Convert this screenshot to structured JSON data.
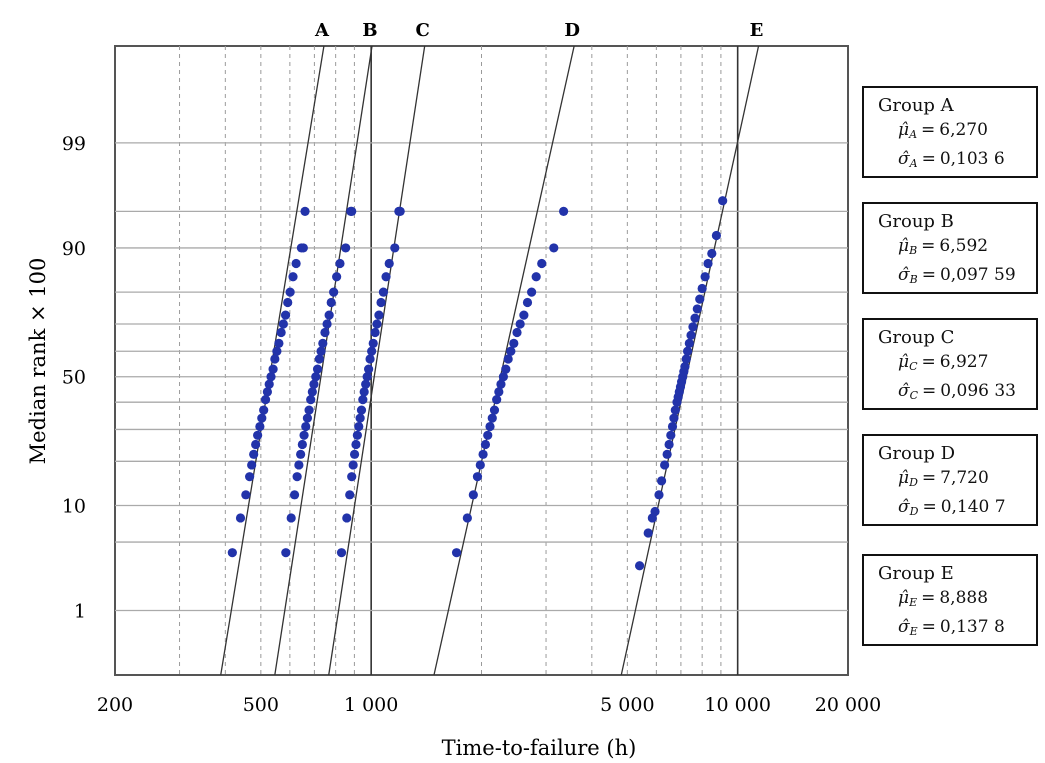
{
  "chart_data": {
    "type": "scatter",
    "title": "",
    "xlabel": "Time-to-failure (h)",
    "ylabel": "Median rank × 100",
    "x_scale": "log",
    "y_scale": "lognormal-probability",
    "xlim": [
      200,
      20000
    ],
    "ylim": [
      0.15,
      99.95
    ],
    "x_tick_labels": [
      {
        "value": 200,
        "label": "200"
      },
      {
        "value": 500,
        "label": "500"
      },
      {
        "value": 1000,
        "label": "1 000"
      },
      {
        "value": 5000,
        "label": "5 000"
      },
      {
        "value": 10000,
        "label": "10 000"
      },
      {
        "value": 20000,
        "label": "20 000"
      }
    ],
    "y_tick_labels": [
      {
        "value": 1,
        "label": "1"
      },
      {
        "value": 10,
        "label": "10"
      },
      {
        "value": 50,
        "label": "50"
      },
      {
        "value": 90,
        "label": "90"
      },
      {
        "value": 99,
        "label": "99"
      }
    ],
    "grid": true,
    "series": [
      {
        "name": "A",
        "mu": 6.27,
        "sigma": 0.1036,
        "points": [
          [
            418,
            4
          ],
          [
            440,
            8
          ],
          [
            455,
            12
          ],
          [
            466,
            16
          ],
          [
            472,
            19
          ],
          [
            478,
            22
          ],
          [
            484,
            25
          ],
          [
            490,
            28
          ],
          [
            497,
            31
          ],
          [
            503,
            34
          ],
          [
            509,
            37
          ],
          [
            515,
            41
          ],
          [
            521,
            44
          ],
          [
            527,
            47
          ],
          [
            533,
            50
          ],
          [
            540,
            53
          ],
          [
            546,
            57
          ],
          [
            553,
            60
          ],
          [
            560,
            63
          ],
          [
            568,
            67
          ],
          [
            576,
            70
          ],
          [
            584,
            73
          ],
          [
            592,
            77
          ],
          [
            601,
            80
          ],
          [
            612,
            84
          ],
          [
            624,
            87
          ],
          [
            645,
            90
          ],
          [
            653,
            90
          ],
          [
            660,
            95
          ]
        ]
      },
      {
        "name": "B",
        "mu": 6.592,
        "sigma": 0.09759,
        "points": [
          [
            585,
            4
          ],
          [
            605,
            8
          ],
          [
            618,
            12
          ],
          [
            628,
            16
          ],
          [
            635,
            19
          ],
          [
            642,
            22
          ],
          [
            649,
            25
          ],
          [
            656,
            28
          ],
          [
            663,
            31
          ],
          [
            670,
            34
          ],
          [
            677,
            37
          ],
          [
            684,
            41
          ],
          [
            691,
            44
          ],
          [
            698,
            47
          ],
          [
            706,
            50
          ],
          [
            714,
            53
          ],
          [
            722,
            57
          ],
          [
            730,
            60
          ],
          [
            738,
            63
          ],
          [
            748,
            67
          ],
          [
            758,
            70
          ],
          [
            768,
            73
          ],
          [
            778,
            77
          ],
          [
            790,
            80
          ],
          [
            805,
            84
          ],
          [
            822,
            87
          ],
          [
            852,
            90
          ],
          [
            880,
            95
          ],
          [
            885,
            95
          ]
        ]
      },
      {
        "name": "C",
        "mu": 6.927,
        "sigma": 0.09633,
        "points": [
          [
            830,
            4
          ],
          [
            858,
            8
          ],
          [
            874,
            12
          ],
          [
            885,
            16
          ],
          [
            893,
            19
          ],
          [
            901,
            22
          ],
          [
            909,
            25
          ],
          [
            917,
            28
          ],
          [
            925,
            31
          ],
          [
            933,
            34
          ],
          [
            941,
            37
          ],
          [
            949,
            41
          ],
          [
            957,
            44
          ],
          [
            966,
            47
          ],
          [
            975,
            50
          ],
          [
            984,
            53
          ],
          [
            993,
            57
          ],
          [
            1003,
            60
          ],
          [
            1013,
            63
          ],
          [
            1025,
            67
          ],
          [
            1037,
            70
          ],
          [
            1050,
            73
          ],
          [
            1064,
            77
          ],
          [
            1080,
            80
          ],
          [
            1098,
            84
          ],
          [
            1120,
            87
          ],
          [
            1160,
            90
          ],
          [
            1190,
            95
          ],
          [
            1200,
            95
          ]
        ]
      },
      {
        "name": "D",
        "mu": 7.72,
        "sigma": 0.1407,
        "points": [
          [
            1710,
            4
          ],
          [
            1830,
            8
          ],
          [
            1900,
            12
          ],
          [
            1950,
            16
          ],
          [
            1985,
            19
          ],
          [
            2020,
            22
          ],
          [
            2050,
            25
          ],
          [
            2080,
            28
          ],
          [
            2110,
            31
          ],
          [
            2140,
            34
          ],
          [
            2170,
            37
          ],
          [
            2200,
            41
          ],
          [
            2230,
            44
          ],
          [
            2260,
            47
          ],
          [
            2295,
            50
          ],
          [
            2330,
            53
          ],
          [
            2365,
            57
          ],
          [
            2405,
            60
          ],
          [
            2450,
            63
          ],
          [
            2500,
            67
          ],
          [
            2550,
            70
          ],
          [
            2610,
            73
          ],
          [
            2670,
            77
          ],
          [
            2740,
            80
          ],
          [
            2820,
            84
          ],
          [
            2920,
            87
          ],
          [
            3150,
            90
          ],
          [
            3350,
            95
          ]
        ]
      },
      {
        "name": "E",
        "mu": 8.888,
        "sigma": 0.1378,
        "points": [
          [
            5400,
            3
          ],
          [
            5700,
            6
          ],
          [
            5850,
            8
          ],
          [
            5950,
            9
          ],
          [
            6100,
            12
          ],
          [
            6200,
            15
          ],
          [
            6320,
            19
          ],
          [
            6420,
            22
          ],
          [
            6500,
            25
          ],
          [
            6570,
            28
          ],
          [
            6640,
            31
          ],
          [
            6700,
            34
          ],
          [
            6760,
            37
          ],
          [
            6830,
            40
          ],
          [
            6880,
            42
          ],
          [
            6930,
            44
          ],
          [
            6980,
            46
          ],
          [
            7030,
            48
          ],
          [
            7080,
            50
          ],
          [
            7130,
            52
          ],
          [
            7180,
            54
          ],
          [
            7240,
            57
          ],
          [
            7300,
            60
          ],
          [
            7380,
            63
          ],
          [
            7460,
            66
          ],
          [
            7550,
            69
          ],
          [
            7650,
            72
          ],
          [
            7760,
            75
          ],
          [
            7880,
            78
          ],
          [
            8000,
            81
          ],
          [
            8150,
            84
          ],
          [
            8300,
            87
          ],
          [
            8500,
            89
          ],
          [
            8750,
            92
          ],
          [
            9100,
            96
          ]
        ]
      }
    ],
    "line_labels": [
      "A",
      "B",
      "C",
      "D",
      "E"
    ],
    "point_color": "#2233aa"
  },
  "groups": [
    {
      "name": "Group A",
      "mu_sym": "μ̂",
      "mu_sub": "A",
      "mu": "6,270",
      "sigma_sym": "σ̂",
      "sigma_sub": "A",
      "sigma": "0,103 6"
    },
    {
      "name": "Group B",
      "mu_sym": "μ̂",
      "mu_sub": "B",
      "mu": "6,592",
      "sigma_sym": "σ̂",
      "sigma_sub": "B",
      "sigma": "0,097 59"
    },
    {
      "name": "Group C",
      "mu_sym": "μ̂",
      "mu_sub": "C",
      "mu": "6,927",
      "sigma_sym": "σ̂",
      "sigma_sub": "C",
      "sigma": "0,096 33"
    },
    {
      "name": "Group D",
      "mu_sym": "μ̂",
      "mu_sub": "D",
      "mu": "7,720",
      "sigma_sym": "σ̂",
      "sigma_sub": "D",
      "sigma": "0,140 7"
    },
    {
      "name": "Group E",
      "mu_sym": "μ̂",
      "mu_sub": "E",
      "mu": "8,888",
      "sigma_sym": "σ̂",
      "sigma_sub": "E",
      "sigma": "0,137 8"
    }
  ]
}
